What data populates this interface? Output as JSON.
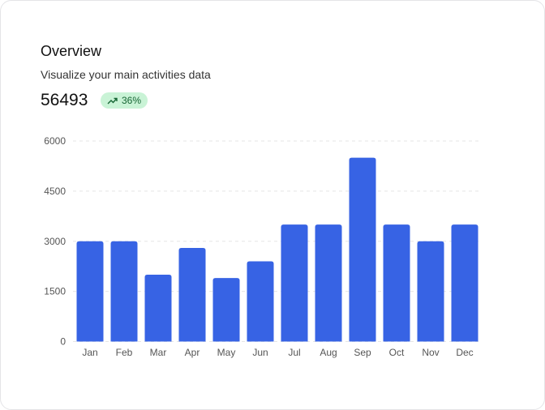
{
  "card": {
    "title": "Overview",
    "subtitle": "Visualize your main activities data",
    "total": "56493",
    "badge": {
      "icon": "trending-up-icon",
      "label": "36%",
      "color": "#166534",
      "background": "#c9f3d6"
    }
  },
  "chart_data": {
    "type": "bar",
    "categories": [
      "Jan",
      "Feb",
      "Mar",
      "Apr",
      "May",
      "Jun",
      "Jul",
      "Aug",
      "Sep",
      "Oct",
      "Nov",
      "Dec"
    ],
    "values": [
      3000,
      3000,
      2000,
      2800,
      1900,
      2400,
      3500,
      3500,
      5500,
      3500,
      3000,
      3500
    ],
    "ylim": [
      0,
      6000
    ],
    "yticks": [
      0,
      1500,
      3000,
      4500,
      6000
    ],
    "grid": true,
    "bar_color": "#3763e4"
  }
}
